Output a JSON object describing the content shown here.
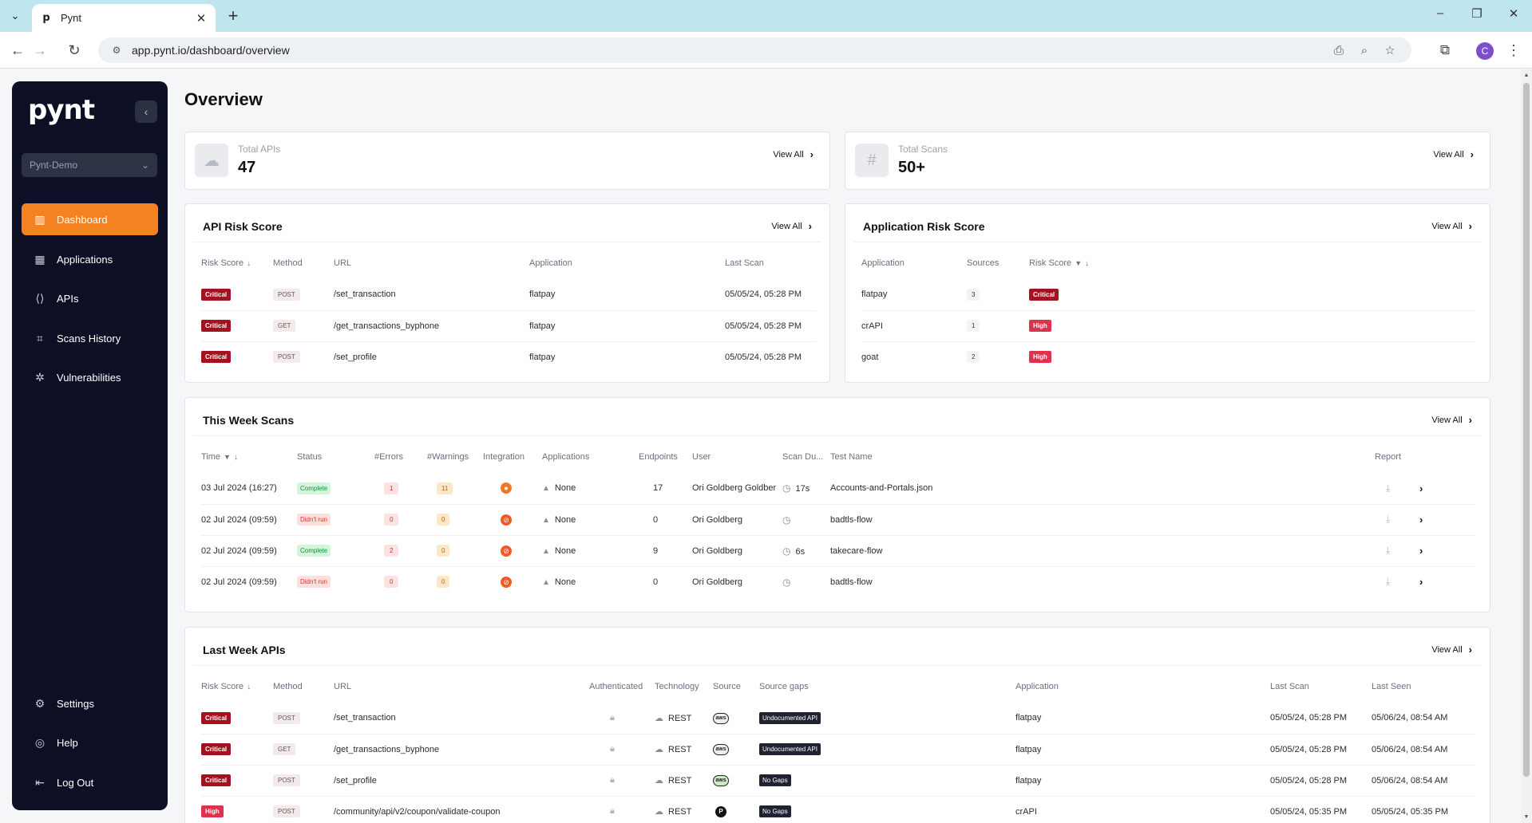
{
  "browser": {
    "tab_title": "Pynt",
    "url": "app.pynt.io/dashboard/overview",
    "profile_initial": "C"
  },
  "sidebar": {
    "logo": "pynt",
    "org": "Pynt-Demo",
    "items": [
      {
        "label": "Dashboard",
        "icon": "dashboard-icon"
      },
      {
        "label": "Applications",
        "icon": "applications-icon"
      },
      {
        "label": "APIs",
        "icon": "apis-icon"
      },
      {
        "label": "Scans History",
        "icon": "scans-history-icon"
      },
      {
        "label": "Vulnerabilities",
        "icon": "bug-icon"
      }
    ],
    "bottom": [
      {
        "label": "Settings",
        "icon": "gear-icon"
      },
      {
        "label": "Help",
        "icon": "help-icon"
      },
      {
        "label": "Log Out",
        "icon": "logout-icon"
      }
    ]
  },
  "page": {
    "title": "Overview"
  },
  "stats": {
    "total_apis": {
      "label": "Total APIs",
      "value": "47",
      "view_all": "View All"
    },
    "total_scans": {
      "label": "Total Scans",
      "value": "50+",
      "view_all": "View All"
    }
  },
  "api_risk": {
    "title": "API Risk Score",
    "view_all": "View All",
    "headers": [
      "Risk Score",
      "Method",
      "URL",
      "Application",
      "Last Scan"
    ],
    "rows": [
      {
        "risk": "Critical",
        "method": "POST",
        "url": "/set_transaction",
        "app": "flatpay",
        "last_scan": "05/05/24, 05:28 PM"
      },
      {
        "risk": "Critical",
        "method": "GET",
        "url": "/get_transactions_byphone",
        "app": "flatpay",
        "last_scan": "05/05/24, 05:28 PM"
      },
      {
        "risk": "Critical",
        "method": "POST",
        "url": "/set_profile",
        "app": "flatpay",
        "last_scan": "05/05/24, 05:28 PM"
      }
    ]
  },
  "app_risk": {
    "title": "Application Risk Score",
    "view_all": "View All",
    "headers": [
      "Application",
      "Sources",
      "Risk Score"
    ],
    "rows": [
      {
        "app": "flatpay",
        "sources": "3",
        "risk": "Critical"
      },
      {
        "app": "crAPI",
        "sources": "1",
        "risk": "High"
      },
      {
        "app": "goat",
        "sources": "2",
        "risk": "High"
      }
    ]
  },
  "week_scans": {
    "title": "This Week Scans",
    "view_all": "View All",
    "headers": [
      "Time",
      "Status",
      "#Errors",
      "#Warnings",
      "Integration",
      "Applications",
      "Endpoints",
      "User",
      "Scan Du...",
      "Test Name",
      "Report"
    ],
    "rows": [
      {
        "time": "03 Jul 2024 (16:27)",
        "status": "Complete",
        "errors": "1",
        "warnings": "11",
        "apps": "None",
        "endpoints": "17",
        "user": "Ori Goldberg Goldber",
        "duration": "17s",
        "test": "Accounts-and-Portals.json"
      },
      {
        "time": "02 Jul 2024 (09:59)",
        "status": "Didn't run",
        "errors": "0",
        "warnings": "0",
        "apps": "None",
        "endpoints": "0",
        "user": "Ori Goldberg",
        "duration": "",
        "test": "badtls-flow"
      },
      {
        "time": "02 Jul 2024 (09:59)",
        "status": "Complete",
        "errors": "2",
        "warnings": "0",
        "apps": "None",
        "endpoints": "9",
        "user": "Ori Goldberg",
        "duration": "6s",
        "test": "takecare-flow"
      },
      {
        "time": "02 Jul 2024 (09:59)",
        "status": "Didn't run",
        "errors": "0",
        "warnings": "0",
        "apps": "None",
        "endpoints": "0",
        "user": "Ori Goldberg",
        "duration": "",
        "test": "badtls-flow"
      }
    ]
  },
  "last_week_apis": {
    "title": "Last Week APIs",
    "view_all": "View All",
    "headers": [
      "Risk Score",
      "Method",
      "URL",
      "Authenticated",
      "Technology",
      "Source",
      "Source gaps",
      "Application",
      "Last Scan",
      "Last Seen"
    ],
    "rows": [
      {
        "risk": "Critical",
        "method": "POST",
        "url": "/set_transaction",
        "tech": "REST",
        "source": "aws",
        "gap": "Undocumented API",
        "app": "flatpay",
        "last_scan": "05/05/24, 05:28 PM",
        "last_seen": "05/06/24, 08:54 AM"
      },
      {
        "risk": "Critical",
        "method": "GET",
        "url": "/get_transactions_byphone",
        "tech": "REST",
        "source": "aws",
        "gap": "Undocumented API",
        "app": "flatpay",
        "last_scan": "05/05/24, 05:28 PM",
        "last_seen": "05/06/24, 08:54 AM"
      },
      {
        "risk": "Critical",
        "method": "POST",
        "url": "/set_profile",
        "tech": "REST",
        "source": "aws",
        "gap": "No Gaps",
        "app": "flatpay",
        "last_scan": "05/05/24, 05:28 PM",
        "last_seen": "05/06/24, 08:54 AM"
      },
      {
        "risk": "High",
        "method": "POST",
        "url": "/community/api/v2/coupon/validate-coupon",
        "tech": "REST",
        "source": "P",
        "gap": "No Gaps",
        "app": "crAPI",
        "last_scan": "05/05/24, 05:35 PM",
        "last_seen": "05/05/24, 05:35 PM"
      }
    ]
  }
}
